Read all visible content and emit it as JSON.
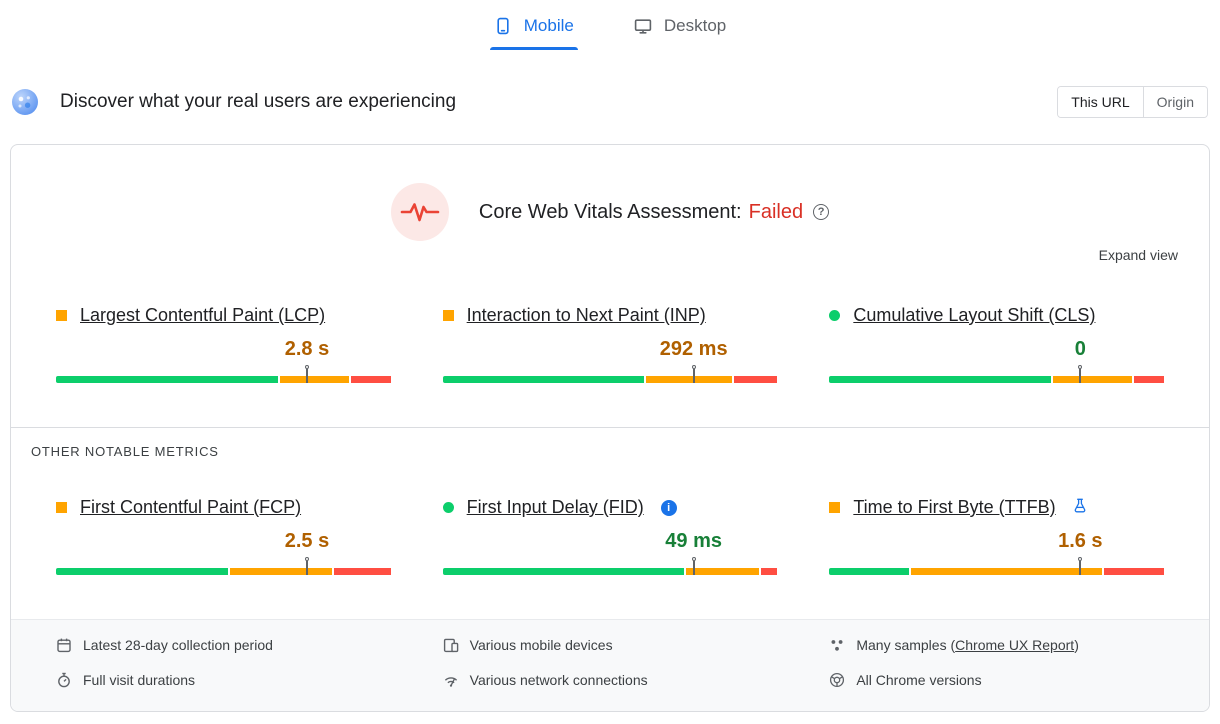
{
  "colors": {
    "accent": "#1a73e8",
    "good": "#0cce6b",
    "average": "#ffa400",
    "poor": "#ff4e42",
    "good_text": "#188038",
    "average_text": "#b06000",
    "failed_text": "#d93025"
  },
  "tabs": {
    "mobile": "Mobile",
    "desktop": "Desktop",
    "active": "Mobile"
  },
  "field_header": {
    "title": "Discover what your real users are experiencing",
    "scope_toggle": {
      "this_url": "This URL",
      "origin": "Origin",
      "selected": "This URL"
    }
  },
  "assessment": {
    "title": "Core Web Vitals Assessment:",
    "status": "Failed",
    "expand_view": "Expand view"
  },
  "metrics": {
    "core": [
      {
        "name": "Largest Contentful Paint (LCP)",
        "value": "2.8 s",
        "rating": "average",
        "distribution": [
          67,
          21,
          12
        ],
        "p75_marker": 75
      },
      {
        "name": "Interaction to Next Paint (INP)",
        "value": "292 ms",
        "rating": "average",
        "distribution": [
          61,
          26,
          13
        ],
        "p75_marker": 75
      },
      {
        "name": "Cumulative Layout Shift (CLS)",
        "value": "0",
        "rating": "good",
        "distribution": [
          67,
          24,
          9
        ],
        "p75_marker": 75
      }
    ],
    "other_heading": "OTHER NOTABLE METRICS",
    "other": [
      {
        "name": "First Contentful Paint (FCP)",
        "value": "2.5 s",
        "rating": "average",
        "distribution": [
          52,
          31,
          17
        ],
        "p75_marker": 75
      },
      {
        "name": "First Input Delay (FID)",
        "value": "49 ms",
        "rating": "good",
        "distribution": [
          73,
          22,
          5
        ],
        "p75_marker": 75,
        "has_info_icon": true
      },
      {
        "name": "Time to First Byte (TTFB)",
        "value": "1.6 s",
        "rating": "average",
        "distribution": [
          24,
          58,
          18
        ],
        "p75_marker": 75,
        "experimental": true
      }
    ]
  },
  "footer": {
    "columns": [
      {
        "items": [
          {
            "icon": "calendar-icon",
            "label": "Latest 28-day collection period"
          },
          {
            "icon": "stopwatch-icon",
            "label": "Full visit durations"
          }
        ]
      },
      {
        "items": [
          {
            "icon": "devices-icon",
            "label": "Various mobile devices"
          },
          {
            "icon": "network-icon",
            "label": "Various network connections"
          }
        ]
      },
      {
        "items": [
          {
            "icon": "samples-icon",
            "label_prefix": "Many samples (",
            "link_label": "Chrome UX Report",
            "label_suffix": ")"
          },
          {
            "icon": "chrome-icon",
            "label": "All Chrome versions"
          }
        ]
      }
    ]
  }
}
